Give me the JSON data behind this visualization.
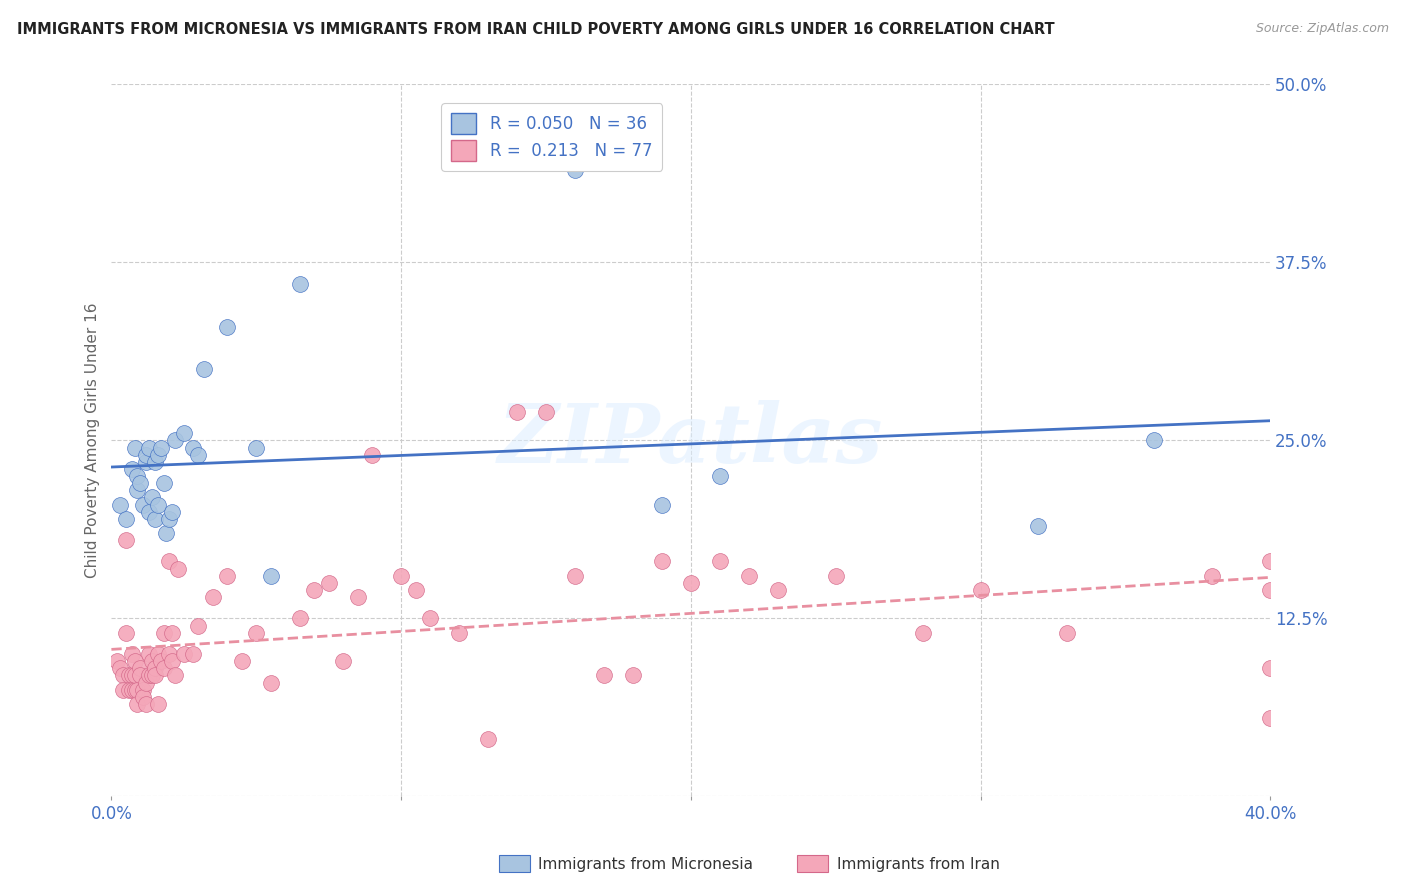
{
  "title": "IMMIGRANTS FROM MICRONESIA VS IMMIGRANTS FROM IRAN CHILD POVERTY AMONG GIRLS UNDER 16 CORRELATION CHART",
  "source": "Source: ZipAtlas.com",
  "ylabel": "Child Poverty Among Girls Under 16",
  "xlim": [
    0.0,
    0.4
  ],
  "ylim": [
    0.0,
    0.5
  ],
  "xticks": [
    0.0,
    0.1,
    0.2,
    0.3,
    0.4
  ],
  "xticklabels": [
    "0.0%",
    "",
    "",
    "",
    "40.0%"
  ],
  "yticks": [
    0.0,
    0.125,
    0.25,
    0.375,
    0.5
  ],
  "yticklabels": [
    "",
    "12.5%",
    "25.0%",
    "37.5%",
    "50.0%"
  ],
  "watermark": "ZIPatlas",
  "legend_r1": "R = 0.050",
  "legend_n1": "N = 36",
  "legend_r2": "R =  0.213",
  "legend_n2": "N = 77",
  "color_micronesia": "#a8c4e0",
  "color_iran": "#f4a7b9",
  "line_color_micronesia": "#4472c4",
  "line_color_iran": "#e88fa0",
  "background_color": "#ffffff",
  "grid_color": "#cccccc",
  "micronesia_x": [
    0.003,
    0.005,
    0.007,
    0.008,
    0.009,
    0.009,
    0.01,
    0.011,
    0.012,
    0.012,
    0.013,
    0.013,
    0.014,
    0.015,
    0.015,
    0.016,
    0.016,
    0.017,
    0.018,
    0.019,
    0.02,
    0.021,
    0.022,
    0.025,
    0.028,
    0.03,
    0.032,
    0.04,
    0.05,
    0.055,
    0.065,
    0.16,
    0.19,
    0.21,
    0.32,
    0.36
  ],
  "micronesia_y": [
    0.205,
    0.195,
    0.23,
    0.245,
    0.215,
    0.225,
    0.22,
    0.205,
    0.235,
    0.24,
    0.2,
    0.245,
    0.21,
    0.235,
    0.195,
    0.205,
    0.24,
    0.245,
    0.22,
    0.185,
    0.195,
    0.2,
    0.25,
    0.255,
    0.245,
    0.24,
    0.3,
    0.33,
    0.245,
    0.155,
    0.36,
    0.44,
    0.205,
    0.225,
    0.19,
    0.25
  ],
  "iran_x": [
    0.002,
    0.003,
    0.004,
    0.004,
    0.005,
    0.005,
    0.006,
    0.006,
    0.007,
    0.007,
    0.007,
    0.008,
    0.008,
    0.008,
    0.009,
    0.009,
    0.01,
    0.01,
    0.011,
    0.011,
    0.012,
    0.012,
    0.013,
    0.013,
    0.014,
    0.014,
    0.015,
    0.015,
    0.016,
    0.016,
    0.017,
    0.018,
    0.018,
    0.02,
    0.02,
    0.021,
    0.021,
    0.022,
    0.023,
    0.025,
    0.028,
    0.03,
    0.035,
    0.04,
    0.045,
    0.05,
    0.055,
    0.065,
    0.07,
    0.075,
    0.08,
    0.085,
    0.09,
    0.1,
    0.105,
    0.11,
    0.12,
    0.13,
    0.14,
    0.15,
    0.16,
    0.17,
    0.18,
    0.19,
    0.2,
    0.21,
    0.22,
    0.23,
    0.25,
    0.28,
    0.3,
    0.33,
    0.38,
    0.4,
    0.4,
    0.4,
    0.4
  ],
  "iran_y": [
    0.095,
    0.09,
    0.085,
    0.075,
    0.18,
    0.115,
    0.085,
    0.075,
    0.085,
    0.075,
    0.1,
    0.075,
    0.085,
    0.095,
    0.075,
    0.065,
    0.09,
    0.085,
    0.075,
    0.07,
    0.08,
    0.065,
    0.1,
    0.085,
    0.085,
    0.095,
    0.09,
    0.085,
    0.065,
    0.1,
    0.095,
    0.115,
    0.09,
    0.1,
    0.165,
    0.095,
    0.115,
    0.085,
    0.16,
    0.1,
    0.1,
    0.12,
    0.14,
    0.155,
    0.095,
    0.115,
    0.08,
    0.125,
    0.145,
    0.15,
    0.095,
    0.14,
    0.24,
    0.155,
    0.145,
    0.125,
    0.115,
    0.04,
    0.27,
    0.27,
    0.155,
    0.085,
    0.085,
    0.165,
    0.15,
    0.165,
    0.155,
    0.145,
    0.155,
    0.115,
    0.145,
    0.115,
    0.155,
    0.055,
    0.09,
    0.145,
    0.165
  ]
}
